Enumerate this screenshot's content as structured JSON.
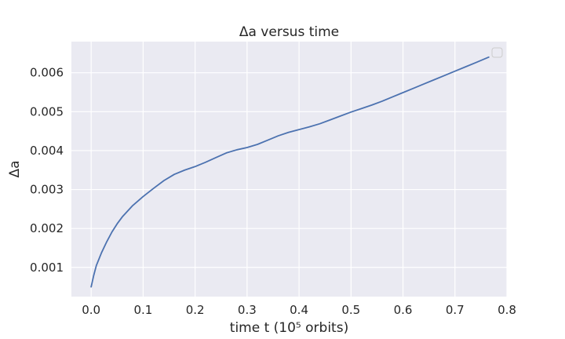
{
  "chart_data": {
    "type": "line",
    "title": "Δa versus time",
    "xlabel": "time t    (10⁵ orbits)",
    "ylabel": "Δa",
    "xlim": [
      -0.038,
      0.8
    ],
    "ylim": [
      0.00025,
      0.0068
    ],
    "xticks": [
      0.0,
      0.1,
      0.2,
      0.3,
      0.4,
      0.5,
      0.6,
      0.7,
      0.8
    ],
    "xtick_labels": [
      "0.0",
      "0.1",
      "0.2",
      "0.3",
      "0.4",
      "0.5",
      "0.6",
      "0.7",
      "0.8"
    ],
    "yticks": [
      0.001,
      0.002,
      0.003,
      0.004,
      0.005,
      0.006
    ],
    "ytick_labels": [
      "0.001",
      "0.002",
      "0.003",
      "0.004",
      "0.005",
      "0.006"
    ],
    "grid": true,
    "legend": "top-right (empty)",
    "colors": {
      "line": "#4c72b0",
      "background": "#eaeaf2",
      "grid": "#ffffff"
    },
    "series": [
      {
        "x": [
          0.0,
          0.005,
          0.01,
          0.02,
          0.03,
          0.04,
          0.05,
          0.06,
          0.08,
          0.1,
          0.12,
          0.14,
          0.16,
          0.18,
          0.2,
          0.22,
          0.24,
          0.26,
          0.28,
          0.3,
          0.32,
          0.34,
          0.36,
          0.38,
          0.4,
          0.42,
          0.44,
          0.46,
          0.48,
          0.5,
          0.52,
          0.54,
          0.56,
          0.58,
          0.6,
          0.62,
          0.64,
          0.66,
          0.68,
          0.7,
          0.72,
          0.74,
          0.765
        ],
        "y": [
          0.0005,
          0.0008,
          0.00105,
          0.00138,
          0.00166,
          0.00191,
          0.00212,
          0.0023,
          0.00259,
          0.00282,
          0.00303,
          0.00323,
          0.00339,
          0.0035,
          0.00359,
          0.0037,
          0.00382,
          0.00394,
          0.00402,
          0.00408,
          0.00416,
          0.00427,
          0.00438,
          0.00447,
          0.00454,
          0.00461,
          0.00469,
          0.00479,
          0.00489,
          0.00499,
          0.00508,
          0.00517,
          0.00527,
          0.00538,
          0.00549,
          0.0056,
          0.00571,
          0.00582,
          0.00593,
          0.00604,
          0.00615,
          0.00626,
          0.0064
        ]
      }
    ]
  }
}
